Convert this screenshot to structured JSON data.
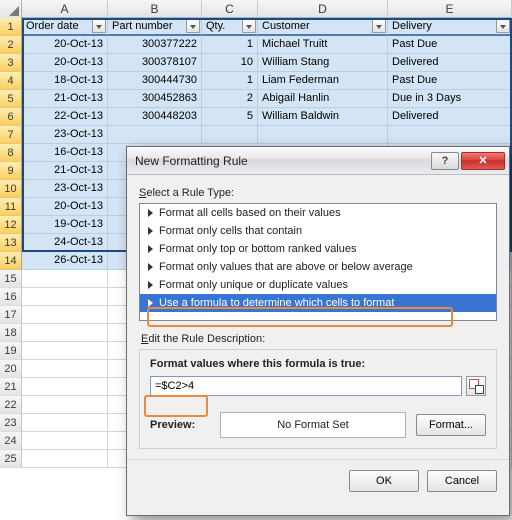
{
  "columns": {
    "A": "A",
    "B": "B",
    "C": "C",
    "D": "D",
    "E": "E"
  },
  "headers": {
    "A": "Order date",
    "B": "Part number",
    "C": "Qty.",
    "D": "Customer",
    "E": "Delivery"
  },
  "rows": [
    {
      "n": "1",
      "hdr": true
    },
    {
      "n": "2",
      "A": "20-Oct-13",
      "B": "300377222",
      "C": "1",
      "D": "Michael Truitt",
      "E": "Past Due",
      "sel": true
    },
    {
      "n": "3",
      "A": "20-Oct-13",
      "B": "300378107",
      "C": "10",
      "D": "William Stang",
      "E": "Delivered",
      "sel": true
    },
    {
      "n": "4",
      "A": "18-Oct-13",
      "B": "300444730",
      "C": "1",
      "D": "Liam Federman",
      "E": "Past Due",
      "sel": true
    },
    {
      "n": "5",
      "A": "21-Oct-13",
      "B": "300452863",
      "C": "2",
      "D": "Abigail Hanlin",
      "E": "Due in 3 Days",
      "sel": true
    },
    {
      "n": "6",
      "A": "22-Oct-13",
      "B": "300448203",
      "C": "5",
      "D": "William Baldwin",
      "E": "Delivered",
      "sel": true
    },
    {
      "n": "7",
      "A": "23-Oct-13",
      "sel": true
    },
    {
      "n": "8",
      "A": "16-Oct-13",
      "sel": true
    },
    {
      "n": "9",
      "A": "21-Oct-13",
      "sel": true
    },
    {
      "n": "10",
      "A": "23-Oct-13",
      "sel": true
    },
    {
      "n": "11",
      "A": "20-Oct-13",
      "sel": true
    },
    {
      "n": "12",
      "A": "19-Oct-13",
      "sel": true
    },
    {
      "n": "13",
      "A": "24-Oct-13",
      "sel": true
    },
    {
      "n": "14",
      "A": "26-Oct-13",
      "sel": true
    },
    {
      "n": "15"
    },
    {
      "n": "16"
    },
    {
      "n": "17"
    },
    {
      "n": "18"
    },
    {
      "n": "19"
    },
    {
      "n": "20"
    },
    {
      "n": "21"
    },
    {
      "n": "22"
    },
    {
      "n": "23"
    },
    {
      "n": "24"
    },
    {
      "n": "25"
    }
  ],
  "dialog": {
    "title": "New Formatting Rule",
    "select_label": "Select a Rule Type:",
    "rule_types": [
      "Format all cells based on their values",
      "Format only cells that contain",
      "Format only top or bottom ranked values",
      "Format only values that are above or below average",
      "Format only unique or duplicate values",
      "Use a formula to determine which cells to format"
    ],
    "selected_rule_index": 5,
    "edit_label": "Edit the Rule Description:",
    "formula_label": "Format values where this formula is true:",
    "formula_value": "=$C2>4",
    "preview_label": "Preview:",
    "preview_text": "No Format Set",
    "format_btn": "Format...",
    "ok": "OK",
    "cancel": "Cancel"
  },
  "highlight": {
    "color": "#e88b3f"
  }
}
